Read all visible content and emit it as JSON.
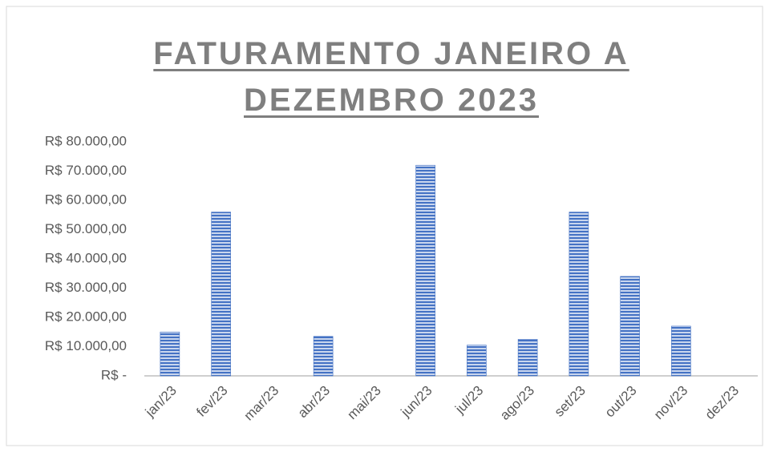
{
  "chart_data": {
    "type": "bar",
    "title": "FATURAMENTO JANEIRO A DEZEMBRO 2023",
    "categories": [
      "jan/23",
      "fev/23",
      "mar/23",
      "abr/23",
      "mai/23",
      "jun/23",
      "jul/23",
      "ago/23",
      "set/23",
      "out/23",
      "nov/23",
      "dez/23"
    ],
    "values": [
      15000,
      56000,
      0,
      13500,
      0,
      72000,
      10500,
      12500,
      56000,
      34000,
      17000,
      0
    ],
    "color": "#4472c4",
    "ylim": [
      0,
      80000
    ],
    "yticks": [
      {
        "value": 0,
        "label": "R$ -"
      },
      {
        "value": 10000,
        "label": "R$ 10.000,00"
      },
      {
        "value": 20000,
        "label": "R$ 20.000,00"
      },
      {
        "value": 30000,
        "label": "R$ 30.000,00"
      },
      {
        "value": 40000,
        "label": "R$ 40.000,00"
      },
      {
        "value": 50000,
        "label": "R$ 50.000,00"
      },
      {
        "value": 60000,
        "label": "R$ 60.000,00"
      },
      {
        "value": 70000,
        "label": "R$ 70.000,00"
      },
      {
        "value": 80000,
        "label": "R$ 80.000,00"
      }
    ],
    "grid": false
  }
}
